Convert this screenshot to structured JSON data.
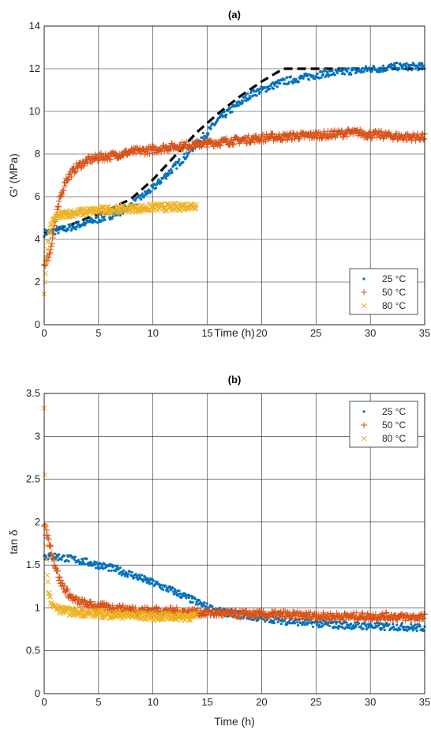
{
  "chart_data": [
    {
      "type": "scatter",
      "title": "(a)",
      "xlabel": "Time (h)",
      "ylabel": "G′ (MPa)",
      "xlim": [
        0,
        35
      ],
      "ylim": [
        0,
        14
      ],
      "xticks": [
        "0",
        "5",
        "10",
        "15",
        "20",
        "25",
        "30",
        "35"
      ],
      "yticks": [
        "0",
        "2",
        "4",
        "6",
        "8",
        "10",
        "12",
        "14"
      ],
      "grid": true,
      "legend_position": "bottom-right",
      "series": [
        {
          "name": "25 °C",
          "marker": "dot",
          "color": "#0072BD",
          "x": [
            0,
            1,
            2,
            3,
            4,
            5,
            6,
            7,
            8,
            9,
            10,
            11,
            12,
            13,
            14,
            15,
            16,
            17,
            18,
            19,
            20,
            21,
            22,
            23,
            24,
            25,
            26,
            27,
            28,
            29,
            30,
            31,
            32,
            33,
            34,
            35
          ],
          "y": [
            4.3,
            4.4,
            4.5,
            4.65,
            4.8,
            4.95,
            5.1,
            5.3,
            5.6,
            6.0,
            6.4,
            6.9,
            7.4,
            7.9,
            8.5,
            9.0,
            9.6,
            10.0,
            10.4,
            10.8,
            11.0,
            11.2,
            11.4,
            11.5,
            11.6,
            11.7,
            11.8,
            11.8,
            11.9,
            11.9,
            12.0,
            12.0,
            12.1,
            12.1,
            12.1,
            12.1
          ]
        },
        {
          "name": "50 °C",
          "marker": "plus",
          "color": "#D95319",
          "x": [
            0,
            0.5,
            1,
            1.5,
            2,
            3,
            4,
            5,
            6,
            7,
            8,
            9,
            10,
            11,
            12,
            13,
            14,
            15,
            16,
            17,
            18,
            19,
            20,
            21,
            22,
            23,
            24,
            25,
            26,
            27,
            28,
            29,
            30,
            31,
            32,
            33,
            34,
            35
          ],
          "y": [
            2.8,
            3.3,
            4.8,
            6.0,
            6.8,
            7.4,
            7.7,
            7.85,
            7.9,
            8.0,
            8.1,
            8.15,
            8.2,
            8.3,
            8.35,
            8.4,
            8.45,
            8.5,
            8.55,
            8.6,
            8.65,
            8.7,
            8.75,
            8.8,
            8.8,
            8.85,
            8.85,
            8.9,
            8.9,
            8.95,
            9.0,
            9.0,
            8.9,
            8.9,
            8.85,
            8.8,
            8.8,
            8.8
          ]
        },
        {
          "name": "80 °C",
          "marker": "x",
          "color": "#EDB120",
          "x": [
            0,
            0.3,
            0.6,
            1,
            1.5,
            2,
            3,
            4,
            5,
            6,
            7,
            8,
            9,
            10,
            11,
            12,
            13,
            14
          ],
          "y": [
            1.4,
            3.8,
            4.6,
            5.0,
            5.1,
            5.2,
            5.25,
            5.3,
            5.35,
            5.4,
            5.4,
            5.45,
            5.45,
            5.5,
            5.5,
            5.5,
            5.55,
            5.6
          ]
        }
      ],
      "fit_line": {
        "style": "dashed",
        "color": "#000000",
        "x": [
          0,
          2,
          4,
          6,
          8,
          10,
          12,
          14,
          16,
          18,
          20,
          22,
          35
        ],
        "y": [
          4.3,
          4.6,
          5.0,
          5.4,
          5.9,
          6.8,
          7.9,
          9.0,
          9.9,
          10.7,
          11.4,
          12.0,
          12.0
        ]
      }
    },
    {
      "type": "scatter",
      "title": "(b)",
      "xlabel": "Time (h)",
      "ylabel": "tan δ",
      "xlim": [
        0,
        35
      ],
      "ylim": [
        0,
        3.5
      ],
      "xticks": [
        "0",
        "5",
        "10",
        "15",
        "20",
        "25",
        "30",
        "35"
      ],
      "yticks": [
        "0",
        "0.5",
        "1",
        "1.5",
        "2",
        "2.5",
        "3",
        "3.5"
      ],
      "grid": true,
      "legend_position": "top-right",
      "series": [
        {
          "name": "25 °C",
          "marker": "dot",
          "color": "#0072BD",
          "x": [
            0,
            1,
            2,
            3,
            4,
            5,
            6,
            7,
            8,
            9,
            10,
            11,
            12,
            13,
            14,
            15,
            16,
            17,
            18,
            19,
            20,
            21,
            22,
            23,
            24,
            25,
            26,
            27,
            28,
            29,
            30,
            31,
            32,
            33,
            34,
            35
          ],
          "y": [
            1.6,
            1.6,
            1.58,
            1.56,
            1.53,
            1.5,
            1.47,
            1.43,
            1.39,
            1.34,
            1.29,
            1.24,
            1.19,
            1.13,
            1.07,
            1.01,
            0.96,
            0.94,
            0.92,
            0.9,
            0.88,
            0.87,
            0.85,
            0.84,
            0.83,
            0.82,
            0.81,
            0.8,
            0.8,
            0.79,
            0.79,
            0.78,
            0.78,
            0.78,
            0.77,
            0.77
          ]
        },
        {
          "name": "50 °C",
          "marker": "plus",
          "color": "#D95319",
          "x": [
            0,
            0.3,
            0.6,
            1,
            1.5,
            2,
            2.5,
            3,
            4,
            5,
            6,
            7,
            8,
            9,
            10,
            11,
            12,
            13,
            14,
            15,
            16,
            17,
            18,
            19,
            20,
            21,
            22,
            23,
            24,
            25,
            26,
            27,
            28,
            29,
            30,
            31,
            32,
            33,
            34,
            35
          ],
          "y": [
            1.95,
            1.85,
            1.7,
            1.5,
            1.3,
            1.2,
            1.12,
            1.08,
            1.04,
            1.02,
            1.0,
            0.99,
            0.98,
            0.97,
            0.97,
            0.96,
            0.96,
            0.95,
            0.95,
            0.94,
            0.94,
            0.93,
            0.93,
            0.93,
            0.92,
            0.92,
            0.92,
            0.91,
            0.91,
            0.91,
            0.9,
            0.9,
            0.9,
            0.9,
            0.9,
            0.9,
            0.9,
            0.89,
            0.89,
            0.89
          ]
        },
        {
          "name": "80 °C",
          "marker": "x",
          "color": "#EDB120",
          "x": [
            0,
            0.05,
            0.1,
            0.3,
            0.5,
            1,
            1.5,
            2,
            3,
            4,
            5,
            6,
            7,
            8,
            9,
            10,
            11,
            12,
            13,
            14
          ],
          "y": [
            3.3,
            2.6,
            2.0,
            1.3,
            1.1,
            1.0,
            0.98,
            0.96,
            0.95,
            0.94,
            0.93,
            0.92,
            0.92,
            0.91,
            0.91,
            0.9,
            0.9,
            0.9,
            0.9,
            0.9
          ]
        }
      ]
    }
  ]
}
